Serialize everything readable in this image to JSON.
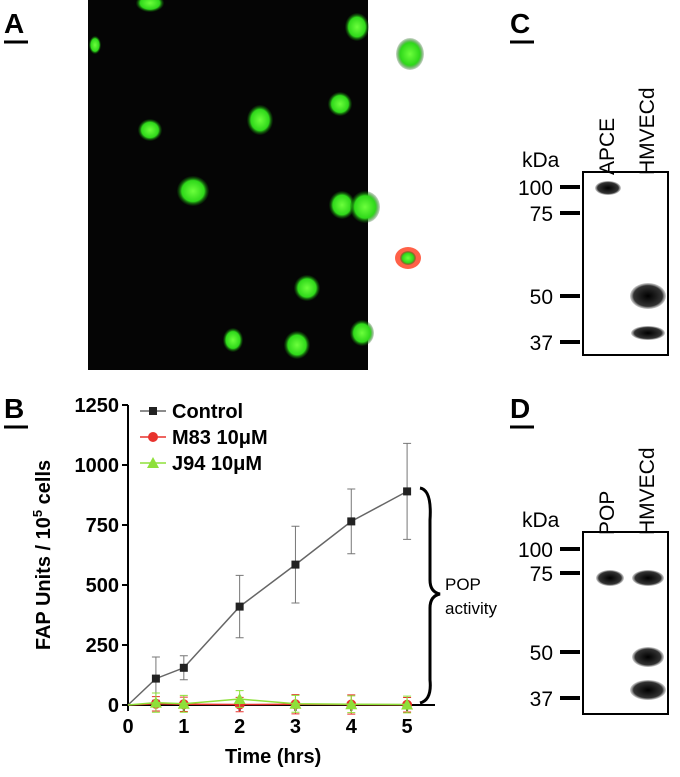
{
  "panel_labels": [
    "A",
    "B",
    "C",
    "D"
  ],
  "chart_data": {
    "type": "line",
    "xlabel": "Time (hrs)",
    "ylabel": [
      "FAP Units / 10",
      "5",
      " cells"
    ],
    "x": [
      0,
      0.5,
      1,
      2,
      3,
      4,
      5
    ],
    "series": [
      {
        "name": "Control",
        "color": "#222222",
        "values": [
          0,
          110,
          155,
          410,
          585,
          765,
          890
        ],
        "errors": [
          0,
          90,
          50,
          130,
          160,
          135,
          200
        ]
      },
      {
        "name": "M83 10μM",
        "color": "#e8322d",
        "values": [
          0,
          5,
          3,
          2,
          3,
          2,
          1
        ],
        "errors": [
          0,
          30,
          30,
          30,
          40,
          40,
          30
        ]
      },
      {
        "name": "J94 10μM",
        "color": "#8ee03a",
        "values": [
          0,
          10,
          5,
          25,
          5,
          3,
          2
        ],
        "errors": [
          0,
          40,
          35,
          35,
          35,
          35,
          35
        ]
      }
    ],
    "xlim": [
      0,
      5.5
    ],
    "xticks": [
      0,
      1,
      2,
      3,
      4,
      5
    ],
    "ylim": [
      0,
      1250
    ],
    "yticks": [
      0,
      250,
      500,
      750,
      1000,
      1250
    ],
    "annotation": [
      "POP",
      "activity"
    ]
  },
  "blot_c": {
    "unit": "kDa",
    "lanes": [
      "APCE",
      "HMVECd"
    ],
    "markers": [
      100,
      75,
      50,
      37
    ]
  },
  "blot_d": {
    "unit": "kDa",
    "lanes": [
      "POP",
      "HMVECd"
    ],
    "markers": [
      100,
      75,
      50,
      37
    ]
  }
}
